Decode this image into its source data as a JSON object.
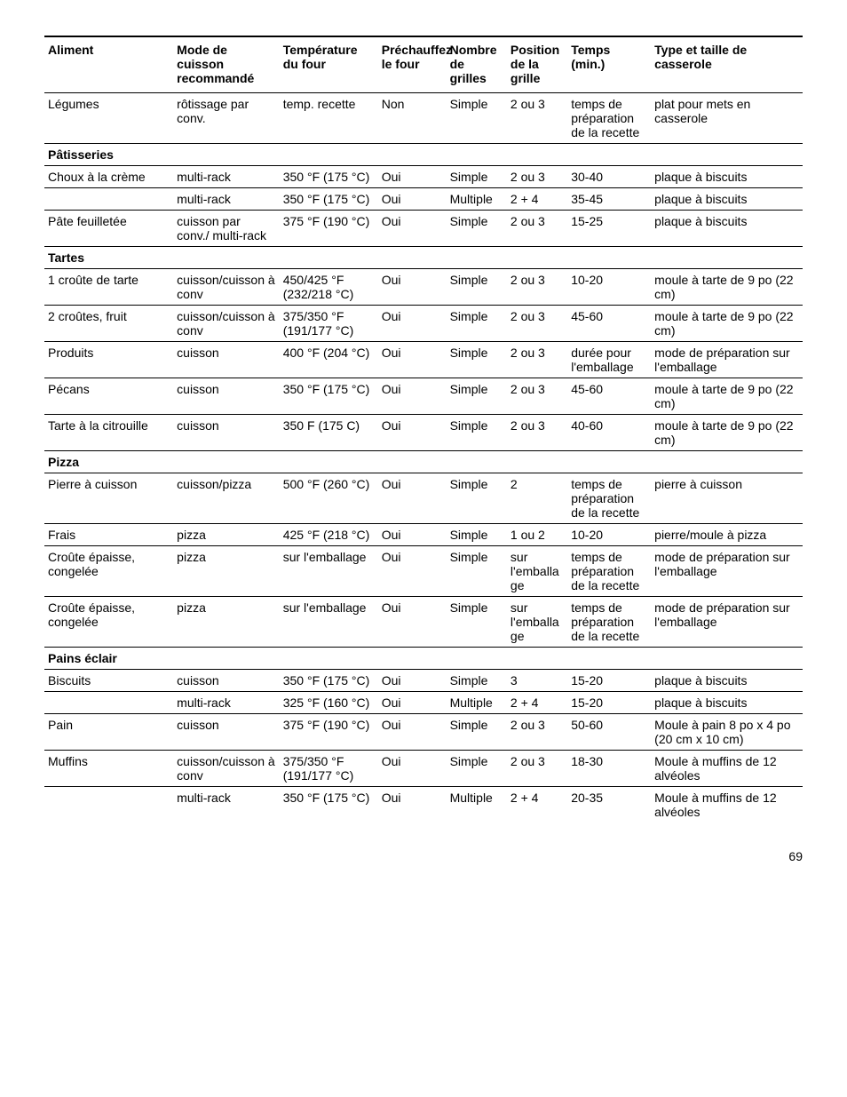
{
  "columns": [
    "Aliment",
    "Mode de cuisson recommandé",
    "Température du four",
    "Préchauffez le four",
    "Nombre de grilles",
    "Position de la grille",
    "Temps (min.)",
    "Type et taille de casserole"
  ],
  "sections": [
    {
      "header": null,
      "rows": [
        [
          "Légumes",
          "rôtissage par conv.",
          "temp. recette",
          "Non",
          "Simple",
          "2 ou 3",
          "temps de préparation de la recette",
          "plat pour mets en casserole"
        ]
      ]
    },
    {
      "header": "Pâtisseries",
      "rows": [
        [
          "Choux à la crème",
          "multi-rack",
          "350 °F (175 °C)",
          "Oui",
          "Simple",
          "2 ou 3",
          "30-40",
          "plaque à biscuits"
        ],
        [
          "",
          "multi-rack",
          "350 °F (175 °C)",
          "Oui",
          "Multiple",
          "2 + 4",
          "35-45",
          "plaque à biscuits"
        ],
        [
          "Pâte feuilletée",
          "cuisson par conv./ multi-rack",
          "375 °F (190 °C)",
          "Oui",
          "Simple",
          "2 ou 3",
          "15-25",
          "plaque à biscuits"
        ]
      ]
    },
    {
      "header": "Tartes",
      "rows": [
        [
          "1 croûte de tarte",
          "cuisson/cuisson à conv",
          "450/425 °F (232/218 °C)",
          "Oui",
          "Simple",
          "2 ou 3",
          "10-20",
          "moule à tarte de 9 po (22 cm)"
        ],
        [
          "2 croûtes, fruit",
          "cuisson/cuisson à conv",
          "375/350 °F (191/177 °C)",
          "Oui",
          "Simple",
          "2 ou 3",
          "45-60",
          "moule à tarte de 9 po (22 cm)"
        ],
        [
          "Produits",
          "cuisson",
          "400 °F (204 °C)",
          "Oui",
          "Simple",
          "2 ou 3",
          "durée pour l'emballage",
          "mode de préparation sur l'emballage"
        ],
        [
          "Pécans",
          "cuisson",
          "350 °F (175 °C)",
          "Oui",
          "Simple",
          "2 ou 3",
          "45-60",
          "moule à tarte de 9 po (22 cm)"
        ],
        [
          "Tarte à la citrouille",
          "cuisson",
          "350 F (175 C)",
          "Oui",
          "Simple",
          "2 ou 3",
          "40-60",
          "moule à tarte de 9 po (22 cm)"
        ]
      ]
    },
    {
      "header": "Pizza",
      "rows": [
        [
          "Pierre à cuisson",
          "cuisson/pizza",
          "500 °F (260 °C)",
          "Oui",
          "Simple",
          "2",
          "temps de préparation de la recette",
          "pierre à cuisson"
        ],
        [
          "Frais",
          "pizza",
          "425 °F (218 °C)",
          "Oui",
          "Simple",
          "1 ou 2",
          "10-20",
          "pierre/moule à pizza"
        ],
        [
          "Croûte épaisse, congelée",
          "pizza",
          "sur l'emballage",
          "Oui",
          "Simple",
          "sur l'emballage",
          "temps de préparation de la recette",
          "mode de préparation sur l'emballage"
        ],
        [
          "Croûte épaisse, congelée",
          "pizza",
          "sur l'emballage",
          "Oui",
          "Simple",
          "sur l'emballage",
          "temps de préparation de la recette",
          "mode de préparation sur l'emballage"
        ]
      ]
    },
    {
      "header": "Pains éclair",
      "rows": [
        [
          "Biscuits",
          "cuisson",
          "350 °F (175 °C)",
          "Oui",
          "Simple",
          "3",
          "15-20",
          "plaque à biscuits"
        ],
        [
          "",
          "multi-rack",
          "325 °F (160 °C)",
          "Oui",
          "Multiple",
          "2 + 4",
          "15-20",
          "plaque à biscuits"
        ],
        [
          "Pain",
          "cuisson",
          "375 °F (190 °C)",
          "Oui",
          "Simple",
          "2 ou 3",
          "50-60",
          "Moule à pain 8 po x 4 po (20 cm x 10 cm)"
        ],
        [
          "Muffins",
          "cuisson/cuisson à conv",
          "375/350 °F (191/177 °C)",
          "Oui",
          "Simple",
          "2 ou 3",
          "18-30",
          "Moule à muffins de 12 alvéoles"
        ],
        [
          "",
          "multi-rack",
          "350 °F (175 °C)",
          "Oui",
          "Multiple",
          "2 + 4",
          "20-35",
          "Moule à muffins de 12 alvéoles"
        ]
      ]
    }
  ],
  "page_number": "69"
}
